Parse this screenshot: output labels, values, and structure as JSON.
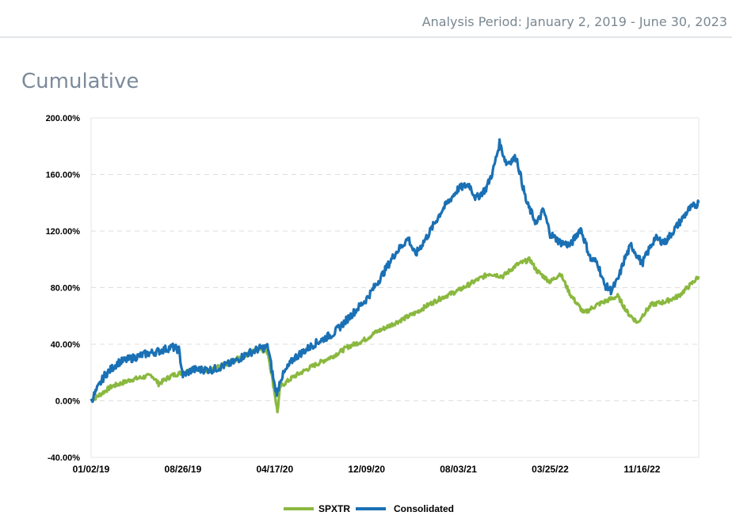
{
  "header": {
    "analysis_period": "Analysis Period: January 2, 2019 - June 30, 2023"
  },
  "section": {
    "title": "Cumulative"
  },
  "colors": {
    "spxtr": "#8ab83f",
    "consolidated": "#1a70b4",
    "grid": "#dddddd"
  },
  "chart_data": {
    "type": "line",
    "title": "Cumulative",
    "xlabel": "",
    "ylabel": "",
    "ylim": [
      -40,
      200
    ],
    "y_ticks": [
      -40,
      0,
      40,
      80,
      120,
      160,
      200
    ],
    "y_tick_labels": [
      "-40.00%",
      "0.00%",
      "40.00%",
      "80.00%",
      "120.00%",
      "160.00%",
      "200.00%"
    ],
    "x_tick_labels": [
      "01/02/19",
      "08/26/19",
      "04/17/20",
      "12/09/20",
      "08/03/21",
      "03/25/22",
      "11/16/22"
    ],
    "x_tick_index": [
      0,
      1.36,
      2.72,
      4.08,
      5.44,
      6.8,
      8.16
    ],
    "x_range_index": [
      0,
      9.0
    ],
    "legend_position": "bottom-center",
    "series": [
      {
        "name": "SPXTR",
        "color": "#8ab83f",
        "points": [
          [
            0,
            0
          ],
          [
            0.3,
            10
          ],
          [
            0.6,
            15
          ],
          [
            0.9,
            18
          ],
          [
            1.0,
            12
          ],
          [
            1.2,
            18
          ],
          [
            1.36,
            20
          ],
          [
            1.5,
            22
          ],
          [
            1.8,
            22
          ],
          [
            2.1,
            28
          ],
          [
            2.3,
            33
          ],
          [
            2.5,
            37
          ],
          [
            2.62,
            34
          ],
          [
            2.72,
            5
          ],
          [
            2.76,
            -8
          ],
          [
            2.8,
            10
          ],
          [
            3.0,
            17
          ],
          [
            3.3,
            25
          ],
          [
            3.6,
            32
          ],
          [
            3.8,
            38
          ],
          [
            4.0,
            42
          ],
          [
            4.08,
            44
          ],
          [
            4.2,
            48
          ],
          [
            4.5,
            55
          ],
          [
            4.8,
            62
          ],
          [
            5.0,
            68
          ],
          [
            5.2,
            73
          ],
          [
            5.44,
            78
          ],
          [
            5.7,
            85
          ],
          [
            5.9,
            90
          ],
          [
            6.1,
            88
          ],
          [
            6.3,
            96
          ],
          [
            6.5,
            100
          ],
          [
            6.6,
            92
          ],
          [
            6.8,
            84
          ],
          [
            6.95,
            90
          ],
          [
            7.1,
            75
          ],
          [
            7.3,
            62
          ],
          [
            7.5,
            68
          ],
          [
            7.8,
            74
          ],
          [
            7.95,
            62
          ],
          [
            8.1,
            55
          ],
          [
            8.16,
            60
          ],
          [
            8.3,
            68
          ],
          [
            8.5,
            70
          ],
          [
            8.7,
            74
          ],
          [
            8.9,
            83
          ],
          [
            9.0,
            88
          ]
        ]
      },
      {
        "name": "Consolidated",
        "color": "#1a70b4",
        "points": [
          [
            0,
            0
          ],
          [
            0.2,
            18
          ],
          [
            0.4,
            27
          ],
          [
            0.6,
            30
          ],
          [
            0.8,
            33
          ],
          [
            1.0,
            35
          ],
          [
            1.2,
            38
          ],
          [
            1.3,
            36
          ],
          [
            1.36,
            18
          ],
          [
            1.5,
            22
          ],
          [
            1.8,
            22
          ],
          [
            2.1,
            27
          ],
          [
            2.3,
            33
          ],
          [
            2.5,
            37
          ],
          [
            2.62,
            38
          ],
          [
            2.72,
            10
          ],
          [
            2.76,
            5
          ],
          [
            2.8,
            15
          ],
          [
            3.0,
            30
          ],
          [
            3.3,
            40
          ],
          [
            3.6,
            48
          ],
          [
            3.8,
            58
          ],
          [
            4.08,
            72
          ],
          [
            4.3,
            88
          ],
          [
            4.5,
            104
          ],
          [
            4.7,
            115
          ],
          [
            4.8,
            103
          ],
          [
            5.0,
            118
          ],
          [
            5.2,
            135
          ],
          [
            5.44,
            150
          ],
          [
            5.6,
            153
          ],
          [
            5.7,
            143
          ],
          [
            5.85,
            150
          ],
          [
            5.95,
            162
          ],
          [
            6.05,
            182
          ],
          [
            6.15,
            168
          ],
          [
            6.3,
            172
          ],
          [
            6.45,
            140
          ],
          [
            6.6,
            125
          ],
          [
            6.7,
            135
          ],
          [
            6.8,
            118
          ],
          [
            6.95,
            112
          ],
          [
            7.1,
            110
          ],
          [
            7.25,
            122
          ],
          [
            7.4,
            100
          ],
          [
            7.5,
            98
          ],
          [
            7.6,
            82
          ],
          [
            7.7,
            78
          ],
          [
            7.8,
            85
          ],
          [
            7.9,
            100
          ],
          [
            8.0,
            110
          ],
          [
            8.16,
            97
          ],
          [
            8.35,
            115
          ],
          [
            8.5,
            112
          ],
          [
            8.7,
            125
          ],
          [
            8.85,
            135
          ],
          [
            9.0,
            140
          ]
        ]
      }
    ]
  }
}
